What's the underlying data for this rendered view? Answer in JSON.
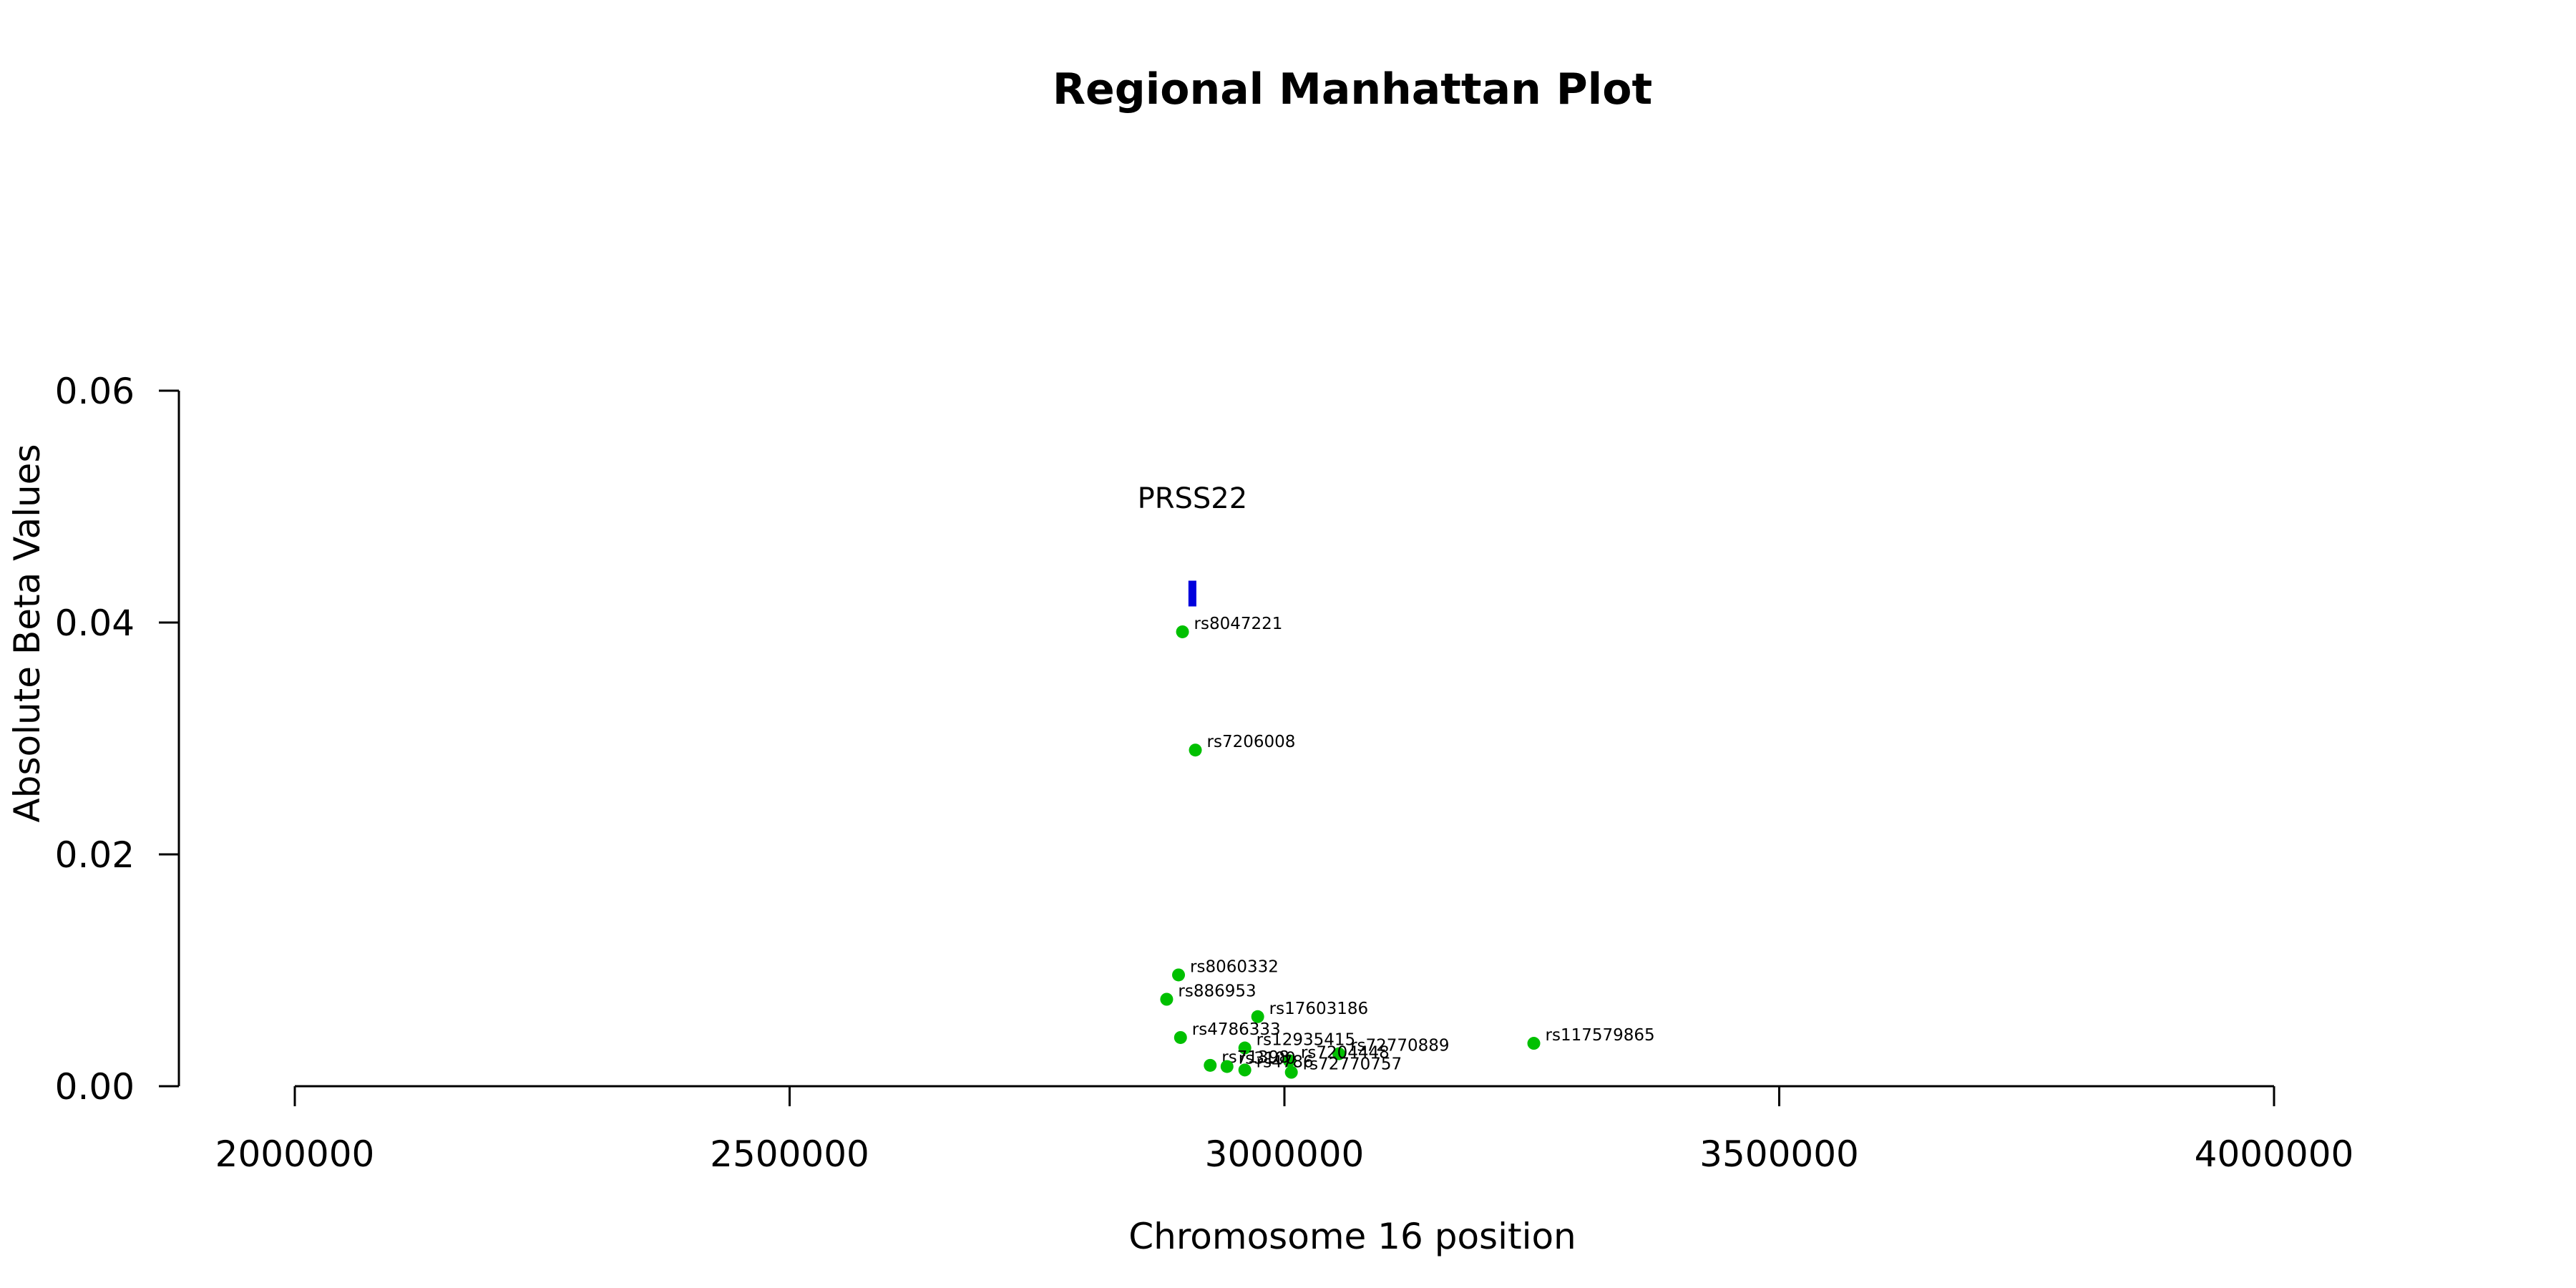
{
  "chart_data": {
    "type": "scatter",
    "title": "Regional Manhattan Plot",
    "xlabel": "Chromosome 16 position",
    "ylabel": "Absolute Beta Values",
    "xlim": [
      1880000,
      4200000
    ],
    "ylim": [
      0,
      0.06
    ],
    "x_axis_range": [
      2000000,
      4000000
    ],
    "x_ticks": [
      2000000,
      2500000,
      3000000,
      3500000,
      4000000
    ],
    "x_tick_labels": [
      "2000000",
      "2500000",
      "3000000",
      "3500000",
      "4000000"
    ],
    "y_ticks": [
      0,
      0.02,
      0.04,
      0.06
    ],
    "y_tick_labels": [
      "0.00",
      "0.02",
      "0.04",
      "0.06"
    ],
    "grid": false,
    "point_color": "#00c000",
    "gene_color": "#0000dd",
    "genes": [
      {
        "name": "PRSS22",
        "start": 2903000,
        "end": 2911000,
        "y": 0.0425,
        "label_y": 0.0508
      }
    ],
    "points": [
      {
        "label": "rs8047221",
        "x": 2897000,
        "y": 0.0392
      },
      {
        "label": "rs7206008",
        "x": 2910000,
        "y": 0.029
      },
      {
        "label": "rs8060332",
        "x": 2893000,
        "y": 0.0096
      },
      {
        "label": "rs886953",
        "x": 2881000,
        "y": 0.0075
      },
      {
        "label": "rs17603186",
        "x": 2973000,
        "y": 0.006
      },
      {
        "label": "rs4786333",
        "x": 2895000,
        "y": 0.0042
      },
      {
        "label": "rs12935415",
        "x": 2960000,
        "y": 0.0033
      },
      {
        "label": "rs72770889",
        "x": 3055000,
        "y": 0.0028
      },
      {
        "label": "rs117579865",
        "x": 3252000,
        "y": 0.0037
      },
      {
        "label": "rs7204448",
        "x": 3005000,
        "y": 0.0022
      },
      {
        "label": "rs71398",
        "x": 2925000,
        "y": 0.0018
      },
      {
        "label": "rs3100",
        "x": 2942000,
        "y": 0.0017
      },
      {
        "label": "rs4786",
        "x": 2960000,
        "y": 0.0014
      },
      {
        "label": "rs72770757",
        "x": 3007000,
        "y": 0.0012
      }
    ]
  }
}
